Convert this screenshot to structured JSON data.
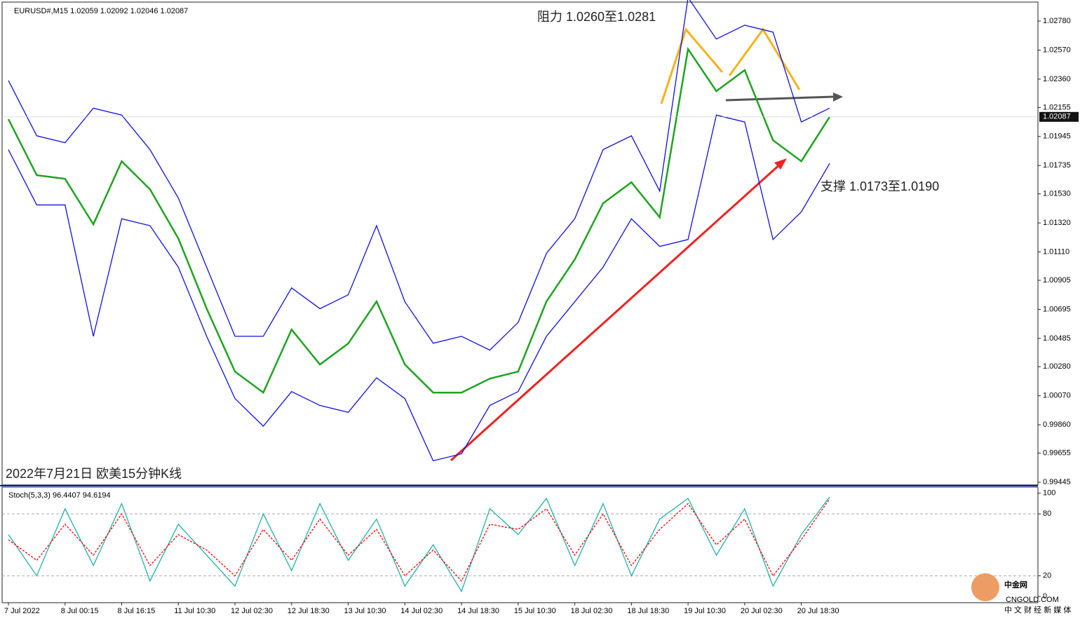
{
  "chart_data": [
    {
      "type": "line",
      "header": "EURUSD#,M15  1.02059 1.02092 1.02046 1.02087",
      "categories": [
        "7 Jul 2022",
        null,
        "8 Jul 00:15",
        null,
        "8 Jul 16:15",
        null,
        "11 Jul 10:30",
        null,
        "12 Jul 02:30",
        null,
        "12 Jul 18:30",
        null,
        "13 Jul 10:30",
        null,
        "14 Jul 02:30",
        null,
        "14 Jul 18:30",
        null,
        "15 Jul 10:30",
        null,
        "18 Jul 02:30",
        null,
        "18 Jul 18:30",
        null,
        "19 Jul 10:30",
        null,
        "20 Jul 02:30",
        null,
        "20 Jul 18:30",
        null
      ],
      "series": [
        {
          "color": "#1fa31f",
          "values": [
            1.0207,
            1.01665,
            1.01639,
            1.0131,
            1.01766,
            1.01563,
            1.01208,
            1.00701,
            1.00245,
            1.00093,
            1.00549,
            1.00296,
            1.00448,
            1.00752,
            1.00296,
            1.00093,
            1.00093,
            1.00194,
            1.00245,
            1.00752,
            1.01056,
            1.01462,
            1.01614,
            1.01361,
            1.02577,
            1.02273,
            1.02425,
            1.01918,
            1.01766,
            1.02087
          ]
        },
        {
          "color": "#1010e0",
          "values": [
            1.0235,
            1.0195,
            1.019,
            1.0215,
            1.021,
            1.0185,
            1.015,
            1.01,
            1.005,
            1.005,
            1.0085,
            1.007,
            1.008,
            1.013,
            1.0075,
            1.0045,
            1.005,
            1.004,
            1.006,
            1.011,
            1.0135,
            1.0185,
            1.0195,
            1.0155,
            1.0295,
            1.0265,
            1.0275,
            1.027,
            1.0205,
            1.0215
          ]
        },
        {
          "color": "#1010e0",
          "values": [
            1.0185,
            1.0145,
            1.0145,
            1.005,
            1.0135,
            1.013,
            1.01,
            1.005,
            1.0005,
            0.9985,
            1.001,
            1.0,
            0.9995,
            1.002,
            1.0005,
            0.996,
            0.9965,
            1.0,
            1.001,
            1.005,
            1.0075,
            1.01,
            1.0135,
            1.0115,
            1.012,
            1.021,
            1.0205,
            1.012,
            1.014,
            1.0175
          ]
        }
      ],
      "ylim": [
        0.99425,
        1.02917
      ],
      "yticks": [
        {
          "value": 1.0278,
          "label": "1.02780"
        },
        {
          "value": 1.0257,
          "label": "1.02570"
        },
        {
          "value": 1.0236,
          "label": "1.02360"
        },
        1.02155,
        1.01945,
        1.01735,
        {
          "value": 1.0153,
          "label": "1.01530"
        },
        {
          "value": 1.0132,
          "label": "1.01320"
        },
        {
          "value": 1.0111,
          "label": "1.01110"
        },
        1.00905,
        1.00695,
        1.00485,
        {
          "value": 1.0028,
          "label": "1.00280"
        },
        {
          "value": 1.0007,
          "label": "1.00070"
        },
        {
          "value": 0.9986,
          "label": "0.99860"
        },
        0.99655,
        0.99445
      ],
      "current_price": 1.02087,
      "annotations": [
        "阻力 1.0260至1.0281",
        "支撑 1.0173至1.0190",
        "2022年7月21日 欧美15分钟K线"
      ]
    },
    {
      "type": "line",
      "header": "Stoch(5,3,3) 96.4407 94.6194",
      "series": [
        {
          "color": "#20b2aa",
          "values": [
            60,
            20,
            85,
            30,
            90,
            15,
            70,
            40,
            10,
            80,
            25,
            90,
            35,
            75,
            10,
            50,
            5,
            85,
            60,
            95,
            30,
            90,
            20,
            75,
            95,
            40,
            85,
            10,
            60,
            96.4407
          ]
        },
        {
          "color": "#ff0000",
          "dashed": true,
          "values": [
            55,
            35,
            70,
            40,
            80,
            30,
            60,
            45,
            20,
            65,
            35,
            75,
            40,
            65,
            20,
            45,
            15,
            70,
            65,
            85,
            40,
            80,
            30,
            65,
            90,
            50,
            75,
            20,
            55,
            94.6194
          ]
        }
      ],
      "ylim": [
        -6,
        106
      ],
      "yticks": [
        0,
        20,
        80,
        100
      ]
    }
  ],
  "watermark": {
    "name": "中金网",
    "site": "CNGOLD.COM",
    "slogan": "中 文 财 经 新 媒 体"
  }
}
